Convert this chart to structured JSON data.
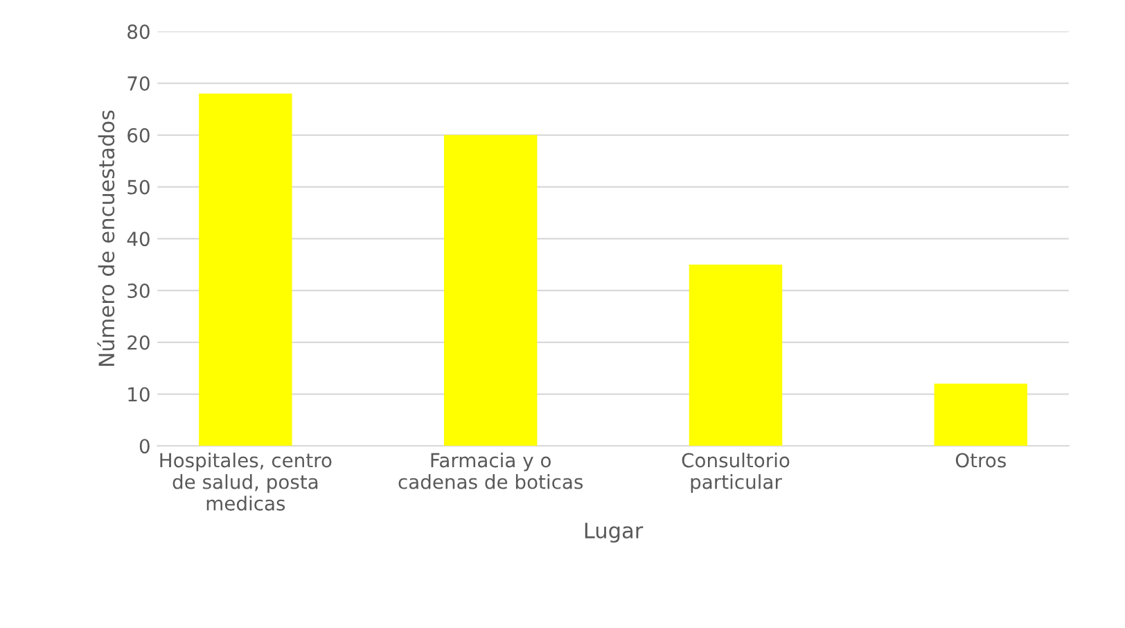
{
  "chart_data": {
    "type": "bar",
    "xlabel": "Lugar",
    "ylabel": "Número de encuestados",
    "categories": [
      "Hospitales, centro\nde salud, posta\nmedicas",
      "Farmacia y o\ncadenas de boticas",
      "Consultorio\nparticular",
      "Otros"
    ],
    "values": [
      68,
      60,
      35,
      12
    ],
    "color": "#ffff00",
    "ylim": [
      0,
      80
    ],
    "yticks": [
      0,
      10,
      20,
      30,
      40,
      50,
      60,
      70,
      80
    ],
    "grid": "y",
    "legend": false
  }
}
